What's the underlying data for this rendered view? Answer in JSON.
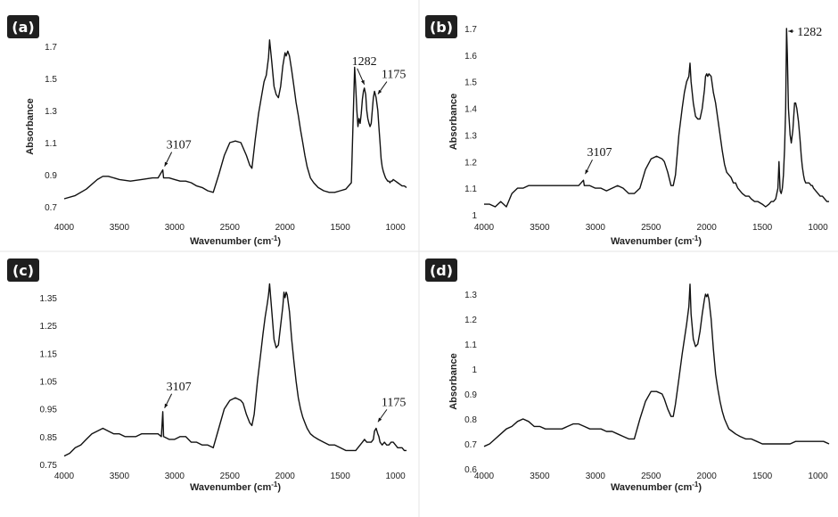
{
  "chart_data": [
    {
      "panel": "(a)",
      "type": "line",
      "xlabel": "Wavenumber (cm",
      "xlabel_sup": "-1",
      "xlabel_end": ")",
      "ylabel": "Absorbance",
      "xlim": [
        4000,
        900
      ],
      "ylim": [
        0.7,
        1.8
      ],
      "xticks": [
        "4000",
        "3500",
        "3000",
        "2500",
        "2000",
        "1500",
        "1000"
      ],
      "yticks": [
        "0.7",
        "0.9",
        "1.1",
        "1.3",
        "1.5",
        "1.7"
      ],
      "annotations": [
        {
          "text": "3107",
          "x": 3107,
          "y": 0.93
        },
        {
          "text": "1282",
          "x": 1282,
          "y": 1.44
        },
        {
          "text": "1175",
          "x": 1175,
          "y": 1.38
        }
      ],
      "series": [
        {
          "x": [
            4000,
            3900,
            3800,
            3700,
            3650,
            3600,
            3500,
            3400,
            3300,
            3200,
            3150,
            3107,
            3100,
            3050,
            3000,
            2950,
            2900,
            2850,
            2800,
            2750,
            2700,
            2650,
            2600,
            2550,
            2500,
            2450,
            2400,
            2350,
            2320,
            2300,
            2270,
            2240,
            2210,
            2190,
            2170,
            2150,
            2140,
            2120,
            2100,
            2080,
            2060,
            2040,
            2020,
            2000,
            1990,
            1975,
            1960,
            1940,
            1920,
            1900,
            1880,
            1860,
            1840,
            1820,
            1800,
            1770,
            1740,
            1700,
            1650,
            1600,
            1550,
            1500,
            1450,
            1400,
            1370,
            1360,
            1350,
            1340,
            1330,
            1320,
            1310,
            1300,
            1290,
            1282,
            1270,
            1260,
            1250,
            1240,
            1230,
            1220,
            1210,
            1200,
            1190,
            1175,
            1160,
            1150,
            1140,
            1130,
            1120,
            1110,
            1100,
            1090,
            1080,
            1070,
            1060,
            1050,
            1040,
            1030,
            1020,
            1000,
            980,
            960,
            940,
            920,
            900
          ],
          "y": [
            0.75,
            0.77,
            0.81,
            0.87,
            0.89,
            0.89,
            0.87,
            0.86,
            0.87,
            0.88,
            0.88,
            0.93,
            0.88,
            0.88,
            0.87,
            0.86,
            0.86,
            0.85,
            0.83,
            0.82,
            0.8,
            0.79,
            0.9,
            1.02,
            1.1,
            1.11,
            1.1,
            1.02,
            0.96,
            0.94,
            1.12,
            1.28,
            1.4,
            1.48,
            1.52,
            1.63,
            1.74,
            1.6,
            1.45,
            1.4,
            1.38,
            1.45,
            1.58,
            1.66,
            1.64,
            1.67,
            1.64,
            1.55,
            1.45,
            1.35,
            1.27,
            1.18,
            1.1,
            1.02,
            0.95,
            0.88,
            0.85,
            0.82,
            0.8,
            0.79,
            0.79,
            0.8,
            0.81,
            0.85,
            1.57,
            1.45,
            1.3,
            1.2,
            1.25,
            1.22,
            1.28,
            1.37,
            1.42,
            1.44,
            1.4,
            1.3,
            1.25,
            1.22,
            1.2,
            1.22,
            1.3,
            1.38,
            1.42,
            1.38,
            1.3,
            1.2,
            1.1,
            1.0,
            0.95,
            0.92,
            0.9,
            0.88,
            0.87,
            0.86,
            0.86,
            0.85,
            0.86,
            0.86,
            0.87,
            0.86,
            0.85,
            0.84,
            0.83,
            0.83,
            0.82
          ]
        }
      ]
    },
    {
      "panel": "(b)",
      "type": "line",
      "xlabel": "Wavenumber (cm",
      "xlabel_sup": "-1",
      "xlabel_end": ")",
      "ylabel": "Absorbance",
      "xlim": [
        4000,
        900
      ],
      "ylim": [
        1.0,
        1.75
      ],
      "xticks": [
        "4000",
        "3500",
        "3000",
        "2500",
        "2000",
        "1500",
        "1000"
      ],
      "yticks": [
        "1",
        "1.1",
        "1.2",
        "1.3",
        "1.4",
        "1.5",
        "1.6",
        "1.7"
      ],
      "annotations": [
        {
          "text": "3107",
          "x": 3107,
          "y": 1.14
        },
        {
          "text": "1282",
          "x": 1282,
          "y": 1.7
        }
      ],
      "series": [
        {
          "x": [
            4000,
            3950,
            3900,
            3850,
            3800,
            3750,
            3700,
            3650,
            3600,
            3550,
            3500,
            3450,
            3400,
            3350,
            3300,
            3250,
            3200,
            3150,
            3107,
            3100,
            3050,
            3000,
            2950,
            2900,
            2850,
            2800,
            2750,
            2700,
            2650,
            2600,
            2550,
            2500,
            2450,
            2400,
            2380,
            2350,
            2320,
            2300,
            2280,
            2250,
            2220,
            2200,
            2180,
            2160,
            2150,
            2140,
            2120,
            2100,
            2080,
            2060,
            2040,
            2020,
            2010,
            2000,
            1990,
            1980,
            1960,
            1940,
            1920,
            1900,
            1880,
            1860,
            1840,
            1820,
            1800,
            1780,
            1760,
            1740,
            1720,
            1700,
            1680,
            1650,
            1620,
            1600,
            1570,
            1540,
            1500,
            1470,
            1440,
            1420,
            1400,
            1380,
            1360,
            1350,
            1340,
            1330,
            1320,
            1310,
            1300,
            1290,
            1282,
            1275,
            1265,
            1250,
            1240,
            1225,
            1210,
            1200,
            1190,
            1175,
            1160,
            1150,
            1140,
            1130,
            1120,
            1110,
            1100,
            1080,
            1060,
            1050,
            1040,
            1020,
            1000,
            980,
            960,
            940,
            920,
            900
          ],
          "y": [
            1.04,
            1.04,
            1.03,
            1.05,
            1.03,
            1.08,
            1.1,
            1.1,
            1.11,
            1.11,
            1.11,
            1.11,
            1.11,
            1.11,
            1.11,
            1.11,
            1.11,
            1.11,
            1.13,
            1.11,
            1.11,
            1.1,
            1.1,
            1.09,
            1.1,
            1.11,
            1.1,
            1.08,
            1.08,
            1.1,
            1.17,
            1.21,
            1.22,
            1.21,
            1.2,
            1.16,
            1.11,
            1.11,
            1.15,
            1.3,
            1.4,
            1.46,
            1.5,
            1.52,
            1.57,
            1.5,
            1.42,
            1.37,
            1.36,
            1.36,
            1.4,
            1.47,
            1.52,
            1.53,
            1.52,
            1.53,
            1.52,
            1.46,
            1.42,
            1.36,
            1.3,
            1.24,
            1.19,
            1.16,
            1.15,
            1.14,
            1.12,
            1.12,
            1.1,
            1.09,
            1.08,
            1.07,
            1.07,
            1.06,
            1.05,
            1.05,
            1.04,
            1.03,
            1.04,
            1.05,
            1.05,
            1.06,
            1.1,
            1.2,
            1.09,
            1.08,
            1.1,
            1.15,
            1.25,
            1.4,
            1.7,
            1.6,
            1.4,
            1.3,
            1.27,
            1.32,
            1.42,
            1.42,
            1.4,
            1.35,
            1.28,
            1.22,
            1.18,
            1.15,
            1.13,
            1.12,
            1.12,
            1.12,
            1.11,
            1.11,
            1.1,
            1.09,
            1.08,
            1.07,
            1.07,
            1.06,
            1.05,
            1.05
          ]
        }
      ]
    },
    {
      "panel": "(c)",
      "type": "line",
      "xlabel": "Wavenumber (cm",
      "xlabel_sup": "-1",
      "xlabel_end": ")",
      "ylabel": "",
      "xlim": [
        4000,
        900
      ],
      "ylim": [
        0.75,
        1.4
      ],
      "xticks": [
        "4000",
        "3500",
        "3000",
        "2500",
        "2000",
        "1500",
        "1000"
      ],
      "yticks": [
        "0.75",
        "0.85",
        "0.95",
        "1.05",
        "1.15",
        "1.25",
        "1.35"
      ],
      "annotations": [
        {
          "text": "3107",
          "x": 3107,
          "y": 0.94
        },
        {
          "text": "1175",
          "x": 1175,
          "y": 0.89
        }
      ],
      "series": [
        {
          "x": [
            4000,
            3950,
            3900,
            3850,
            3800,
            3750,
            3700,
            3650,
            3600,
            3550,
            3500,
            3450,
            3400,
            3350,
            3300,
            3250,
            3200,
            3150,
            3120,
            3107,
            3100,
            3050,
            3000,
            2950,
            2900,
            2850,
            2800,
            2750,
            2700,
            2650,
            2600,
            2550,
            2500,
            2450,
            2400,
            2380,
            2350,
            2320,
            2300,
            2280,
            2250,
            2220,
            2200,
            2180,
            2160,
            2150,
            2140,
            2120,
            2100,
            2080,
            2060,
            2040,
            2020,
            2010,
            2000,
            1990,
            1980,
            1960,
            1940,
            1920,
            1900,
            1880,
            1860,
            1840,
            1820,
            1800,
            1770,
            1740,
            1700,
            1650,
            1600,
            1550,
            1500,
            1450,
            1400,
            1360,
            1340,
            1320,
            1300,
            1280,
            1260,
            1240,
            1220,
            1200,
            1190,
            1175,
            1160,
            1150,
            1140,
            1120,
            1100,
            1080,
            1060,
            1040,
            1020,
            1000,
            980,
            960,
            940,
            920,
            900
          ],
          "y": [
            0.78,
            0.79,
            0.81,
            0.82,
            0.84,
            0.86,
            0.87,
            0.88,
            0.87,
            0.86,
            0.86,
            0.85,
            0.85,
            0.85,
            0.86,
            0.86,
            0.86,
            0.86,
            0.85,
            0.94,
            0.85,
            0.84,
            0.84,
            0.85,
            0.85,
            0.83,
            0.83,
            0.82,
            0.82,
            0.81,
            0.88,
            0.95,
            0.98,
            0.99,
            0.98,
            0.97,
            0.93,
            0.9,
            0.89,
            0.93,
            1.05,
            1.15,
            1.22,
            1.28,
            1.33,
            1.36,
            1.4,
            1.3,
            1.2,
            1.17,
            1.18,
            1.25,
            1.32,
            1.37,
            1.35,
            1.37,
            1.36,
            1.3,
            1.2,
            1.12,
            1.05,
            0.99,
            0.95,
            0.92,
            0.9,
            0.88,
            0.86,
            0.85,
            0.84,
            0.83,
            0.82,
            0.82,
            0.81,
            0.8,
            0.8,
            0.8,
            0.81,
            0.82,
            0.83,
            0.84,
            0.83,
            0.83,
            0.83,
            0.84,
            0.87,
            0.88,
            0.86,
            0.85,
            0.83,
            0.82,
            0.83,
            0.82,
            0.82,
            0.83,
            0.83,
            0.82,
            0.81,
            0.81,
            0.81,
            0.8,
            0.8
          ]
        }
      ]
    },
    {
      "panel": "(d)",
      "type": "line",
      "xlabel": "Wavenumber (cm",
      "xlabel_sup": "-1",
      "xlabel_end": ")",
      "ylabel": "Absorbance",
      "xlim": [
        4000,
        900
      ],
      "ylim": [
        0.6,
        1.35
      ],
      "xticks": [
        "4000",
        "3500",
        "3000",
        "2500",
        "2000",
        "1500",
        "1000"
      ],
      "yticks": [
        "0.6",
        "0.7",
        "0.8",
        "0.9",
        "1",
        "1.1",
        "1.2",
        "1.3"
      ],
      "annotations": [],
      "series": [
        {
          "x": [
            4000,
            3950,
            3900,
            3850,
            3800,
            3750,
            3700,
            3650,
            3600,
            3550,
            3500,
            3450,
            3400,
            3350,
            3300,
            3250,
            3200,
            3150,
            3100,
            3050,
            3000,
            2950,
            2900,
            2850,
            2800,
            2750,
            2700,
            2650,
            2600,
            2550,
            2500,
            2450,
            2400,
            2380,
            2350,
            2320,
            2300,
            2280,
            2250,
            2220,
            2200,
            2180,
            2160,
            2150,
            2140,
            2120,
            2100,
            2080,
            2060,
            2040,
            2020,
            2010,
            2000,
            1990,
            1980,
            1960,
            1940,
            1920,
            1900,
            1880,
            1860,
            1840,
            1820,
            1800,
            1770,
            1740,
            1700,
            1650,
            1600,
            1550,
            1500,
            1450,
            1400,
            1350,
            1300,
            1250,
            1200,
            1150,
            1100,
            1050,
            1000,
            950,
            900
          ],
          "y": [
            0.69,
            0.7,
            0.72,
            0.74,
            0.76,
            0.77,
            0.79,
            0.8,
            0.79,
            0.77,
            0.77,
            0.76,
            0.76,
            0.76,
            0.76,
            0.77,
            0.78,
            0.78,
            0.77,
            0.76,
            0.76,
            0.76,
            0.75,
            0.75,
            0.74,
            0.73,
            0.72,
            0.72,
            0.8,
            0.87,
            0.91,
            0.91,
            0.9,
            0.88,
            0.84,
            0.81,
            0.81,
            0.86,
            0.96,
            1.06,
            1.12,
            1.18,
            1.25,
            1.34,
            1.22,
            1.12,
            1.09,
            1.1,
            1.15,
            1.22,
            1.28,
            1.3,
            1.29,
            1.3,
            1.28,
            1.2,
            1.08,
            0.98,
            0.92,
            0.87,
            0.83,
            0.8,
            0.78,
            0.76,
            0.75,
            0.74,
            0.73,
            0.72,
            0.72,
            0.71,
            0.7,
            0.7,
            0.7,
            0.7,
            0.7,
            0.7,
            0.71,
            0.71,
            0.71,
            0.71,
            0.71,
            0.71,
            0.7
          ]
        }
      ]
    }
  ]
}
